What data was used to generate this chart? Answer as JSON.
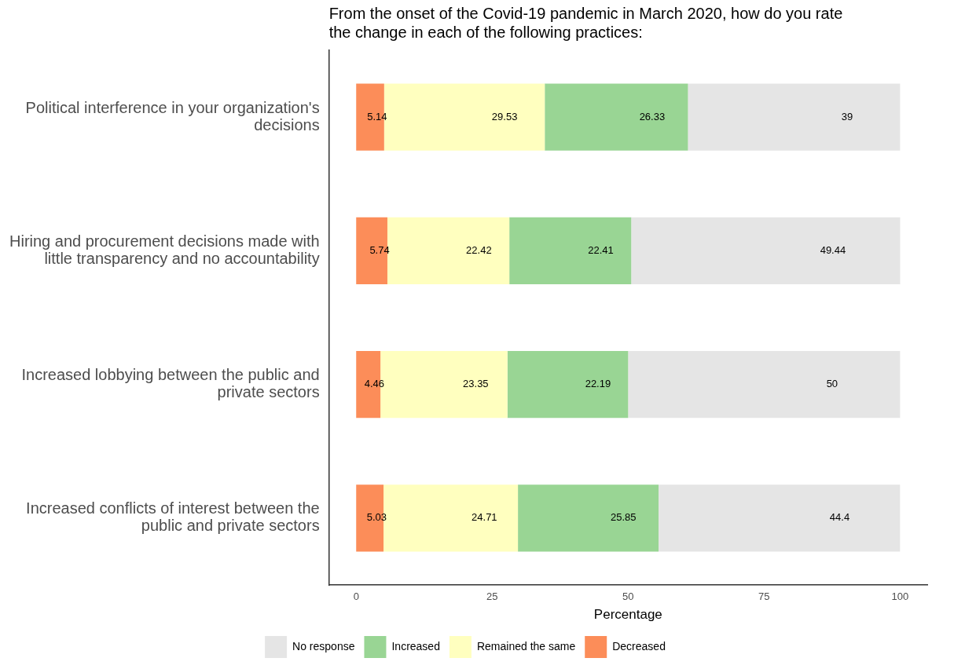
{
  "chart_data": {
    "type": "bar",
    "orientation": "horizontal",
    "stacked": true,
    "title": "From the onset of the Covid-19 pandemic in March 2020, how do you rate the change in each of the following practices:",
    "xlabel": "Percentage",
    "categories": [
      "Political interference in your organization's decisions",
      "Hiring and procurement decisions made with little transparency and no accountability",
      "Increased lobbying between the public and private sectors",
      "Increased conflicts of interest between the public and private sectors"
    ],
    "series": [
      {
        "name": "Decreased",
        "color": "#fc8d59",
        "values": [
          5.14,
          5.74,
          4.46,
          5.03
        ]
      },
      {
        "name": "Remained the same",
        "color": "#ffffbf",
        "values": [
          29.53,
          22.42,
          23.35,
          24.71
        ]
      },
      {
        "name": "Increased",
        "color": "#99d594",
        "values": [
          26.33,
          22.41,
          22.19,
          25.85
        ]
      },
      {
        "name": "No response",
        "color": "#e5e5e5",
        "values": [
          39,
          49.44,
          50,
          44.4
        ]
      }
    ],
    "xlim": [
      -5,
      105
    ],
    "xticks": [
      0,
      25,
      50,
      75,
      100
    ],
    "grid": false,
    "legend": "bottom",
    "data_labels": true
  }
}
